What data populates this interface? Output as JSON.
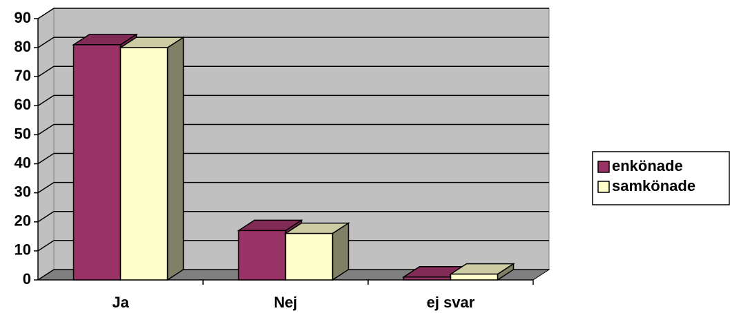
{
  "chart_data": {
    "type": "bar3d",
    "categories": [
      "Ja",
      "Nej",
      "ej svar"
    ],
    "series": [
      {
        "name": "enkönade",
        "color": "#993366",
        "values": [
          81,
          17,
          1
        ]
      },
      {
        "name": "samkönade",
        "color": "#ffffcc",
        "values": [
          80,
          16,
          2
        ]
      }
    ],
    "ylim": [
      0,
      90
    ],
    "yticks": [
      0,
      10,
      20,
      30,
      40,
      50,
      60,
      70,
      80,
      90
    ],
    "grid": true,
    "legend": "right"
  }
}
